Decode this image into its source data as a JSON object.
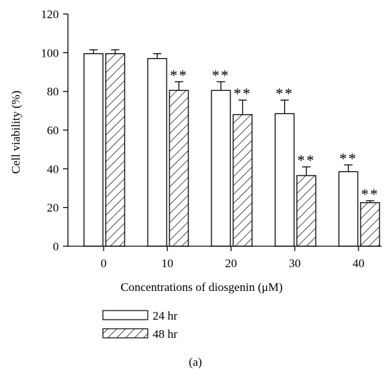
{
  "chart_data": {
    "type": "bar",
    "categories": [
      "0",
      "10",
      "20",
      "30",
      "40"
    ],
    "xlabel": "Concentrations of diosgenin (μM)",
    "ylabel": "Cell viability (%)",
    "ylim": [
      0,
      120
    ],
    "yticks": [
      "0",
      "20",
      "40",
      "60",
      "80",
      "100",
      "120"
    ],
    "series": [
      {
        "name": "24 hr",
        "pattern": "open",
        "values": [
          99.5,
          97,
          80.5,
          68.5,
          38.5
        ],
        "errors": [
          2,
          2.5,
          4.5,
          7,
          3.5
        ],
        "significance": [
          "",
          "",
          "**",
          "**",
          "**"
        ]
      },
      {
        "name": "48 hr",
        "pattern": "hatched",
        "values": [
          99.5,
          80.5,
          68,
          36.5,
          22.5
        ],
        "errors": [
          2,
          4.5,
          7.5,
          4.5,
          1
        ],
        "significance": [
          "",
          "**",
          "**",
          "**",
          "**"
        ]
      }
    ],
    "legend_position": "bottom-left",
    "panel_label": "(a)"
  },
  "colors": {
    "ink": "#000000",
    "bar_fill": "#ffffff"
  }
}
